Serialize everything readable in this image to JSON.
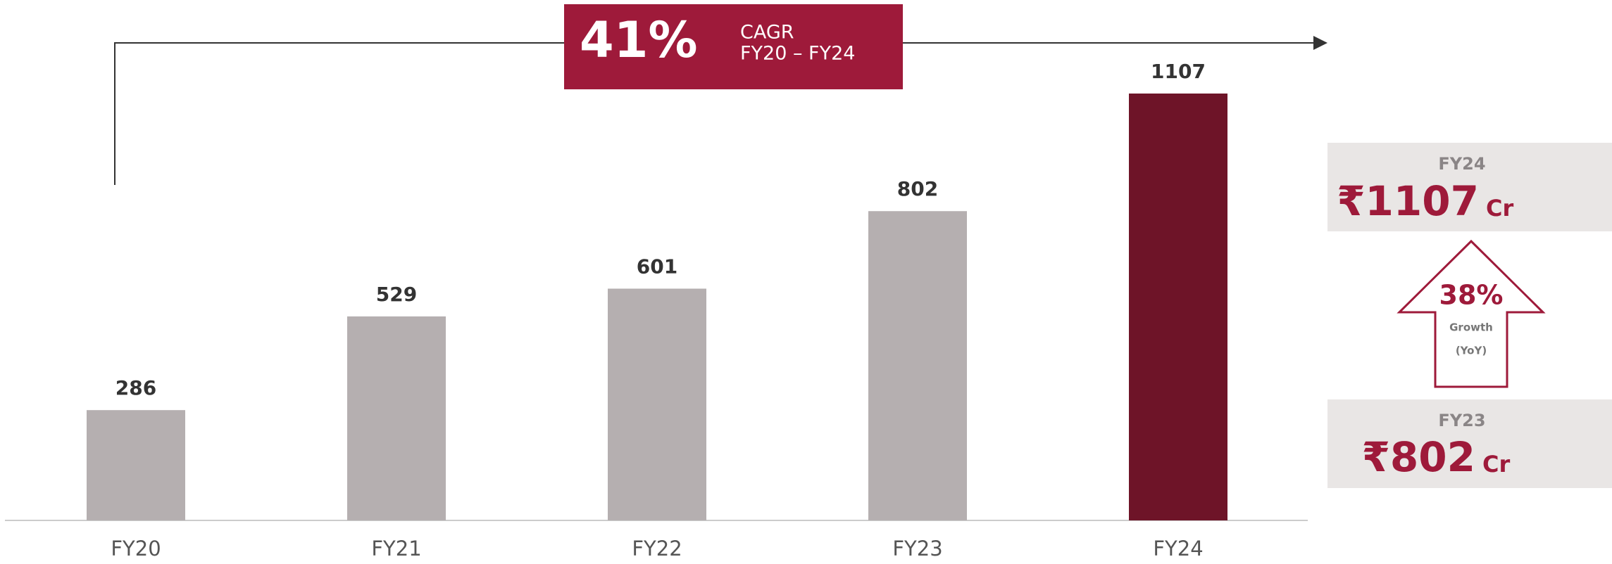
{
  "chart_data": {
    "type": "bar",
    "categories": [
      "FY20",
      "FY21",
      "FY22",
      "FY23",
      "FY24"
    ],
    "values": [
      286,
      529,
      601,
      802,
      1107
    ],
    "colors": [
      "#b5afb0",
      "#b5afb0",
      "#b5afb0",
      "#b5afb0",
      "#6e1428"
    ],
    "annotations": {
      "cagr_value": "41%",
      "cagr_label": "CAGR",
      "cagr_period": "FY20 – FY24",
      "current_period": "FY24",
      "current_amount": "₹1107",
      "current_unit": "Cr",
      "growth_value": "38%",
      "growth_label": "Growth",
      "growth_basis": "(YoY)",
      "previous_period": "FY23",
      "previous_amount": "₹802",
      "previous_unit": "Cr"
    }
  }
}
